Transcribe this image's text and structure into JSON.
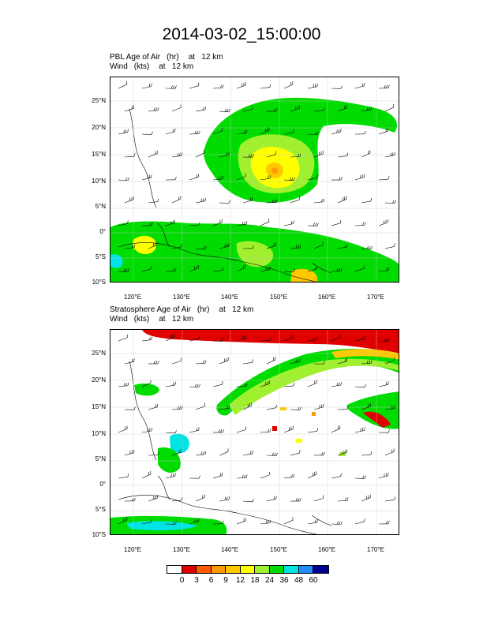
{
  "title": "2014-03-02_15:00:00",
  "panels": [
    {
      "field": "PBL Age of Air",
      "unit": "(hr)",
      "level": "at   12 km",
      "wind_field": "Wind",
      "wind_unit": "(kts)",
      "wind_level": "at   12 km"
    },
    {
      "field": "Stratosphere Age of Air",
      "unit": "(hr)",
      "level": "at   12 km",
      "wind_field": "Wind",
      "wind_unit": "(kts)",
      "wind_level": "at   12 km"
    }
  ],
  "lat_labels": [
    "25°N",
    "20°N",
    "15°N",
    "10°N",
    "5°N",
    "0°",
    "5°S",
    "10°S"
  ],
  "lon_labels": [
    "120°E",
    "130°E",
    "140°E",
    "150°E",
    "160°E",
    "170°E"
  ],
  "colorbar": {
    "labels": [
      "0",
      "3",
      "6",
      "9",
      "12",
      "18",
      "24",
      "36",
      "48",
      "60"
    ],
    "colors": [
      "#ffffff",
      "#e00000",
      "#ff5a00",
      "#ff9a00",
      "#ffc800",
      "#ffff00",
      "#a0f030",
      "#00dc00",
      "#00e4e4",
      "#1e8cff",
      "#000090"
    ]
  }
}
